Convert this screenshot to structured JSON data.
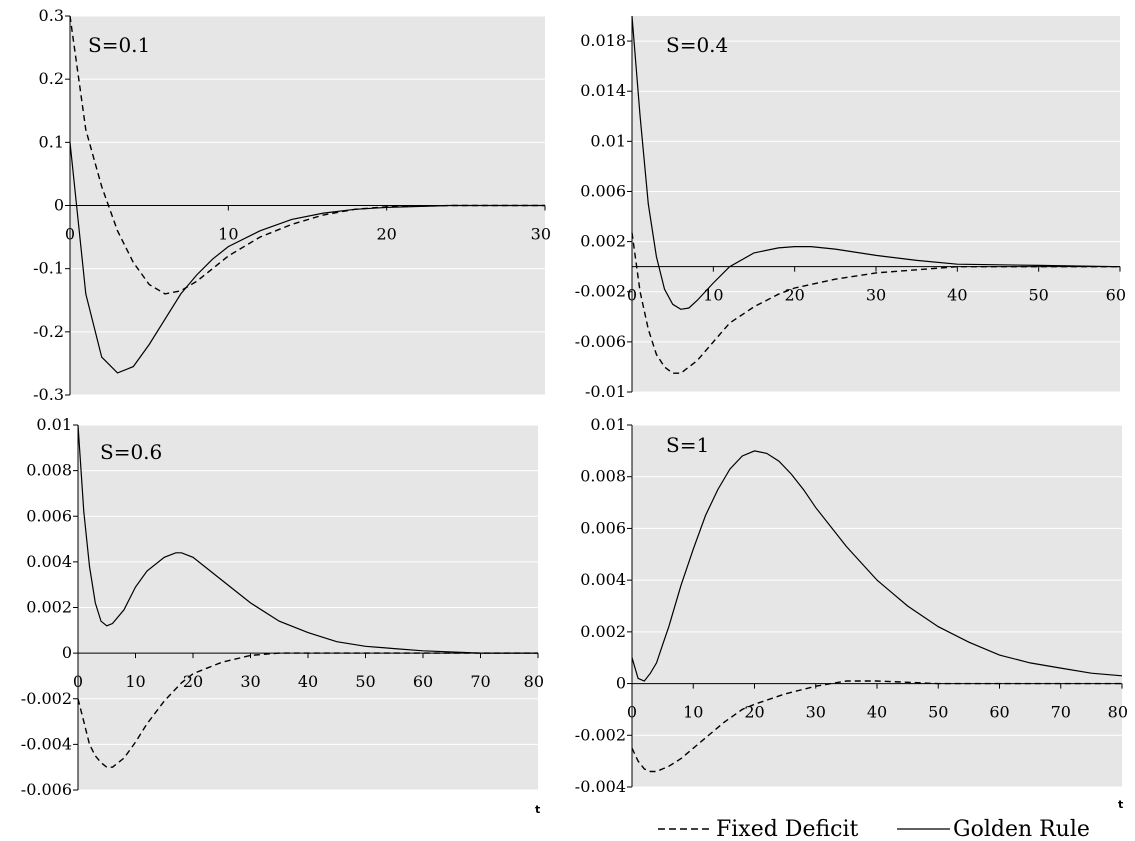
{
  "legend": {
    "fixed_deficit": "Fixed Deficit",
    "golden_rule": "Golden Rule"
  },
  "colors": {
    "plot_background": "#e6e6e6",
    "gridline": "#ffffff",
    "series": "#000000"
  },
  "chart_data": [
    {
      "type": "line",
      "title": "S=0.1",
      "xlabel": "",
      "ylabel": "",
      "xlim": [
        0,
        30
      ],
      "ylim": [
        -0.3,
        0.3
      ],
      "xticks": [
        "0",
        "10",
        "20",
        "30"
      ],
      "yticks": [
        "-0.3",
        "-0.2",
        "-0.1",
        "0",
        "0.1",
        "0.2",
        "0.3"
      ],
      "grid": true,
      "series": [
        {
          "name": "Fixed Deficit",
          "style": "dashed",
          "x": [
            0,
            1,
            2,
            3,
            4,
            5,
            6,
            7,
            8,
            9,
            10,
            12,
            14,
            16,
            18,
            20,
            24,
            30
          ],
          "y": [
            0.3,
            0.12,
            0.03,
            -0.04,
            -0.09,
            -0.125,
            -0.14,
            -0.135,
            -0.12,
            -0.1,
            -0.08,
            -0.05,
            -0.03,
            -0.015,
            -0.006,
            -0.002,
            0,
            0
          ]
        },
        {
          "name": "Golden Rule",
          "style": "solid",
          "x": [
            0,
            1,
            2,
            3,
            4,
            5,
            6,
            7,
            8,
            9,
            10,
            12,
            14,
            16,
            18,
            20,
            24,
            30
          ],
          "y": [
            0.1,
            -0.14,
            -0.24,
            -0.265,
            -0.255,
            -0.22,
            -0.18,
            -0.14,
            -0.11,
            -0.085,
            -0.065,
            -0.04,
            -0.022,
            -0.012,
            -0.006,
            -0.003,
            0,
            0
          ]
        }
      ]
    },
    {
      "type": "line",
      "title": "S=0.4",
      "xlabel": "",
      "ylabel": "",
      "xlim": [
        0,
        60
      ],
      "ylim": [
        -0.01,
        0.02
      ],
      "xticks": [
        "0",
        "10",
        "20",
        "30",
        "40",
        "50",
        "60"
      ],
      "yticks": [
        "-0.01",
        "-0.006",
        "-0.002",
        "0.002",
        "0.006",
        "0.01",
        "0.014",
        "0.018"
      ],
      "grid": true,
      "series": [
        {
          "name": "Fixed Deficit",
          "style": "dashed",
          "x": [
            0,
            1,
            2,
            3,
            4,
            5,
            6,
            8,
            10,
            12,
            15,
            18,
            20,
            25,
            30,
            40,
            50,
            60
          ],
          "y": [
            0.0027,
            -0.002,
            -0.005,
            -0.007,
            -0.008,
            -0.0085,
            -0.0085,
            -0.0075,
            -0.006,
            -0.0045,
            -0.0032,
            -0.0022,
            -0.0017,
            -0.001,
            -0.0005,
            0,
            0,
            0
          ]
        },
        {
          "name": "Golden Rule",
          "style": "solid",
          "x": [
            0,
            1,
            2,
            3,
            4,
            5,
            6,
            7,
            8,
            10,
            12,
            15,
            18,
            20,
            22,
            25,
            30,
            35,
            40,
            50,
            60
          ],
          "y": [
            0.02,
            0.012,
            0.005,
            0.0008,
            -0.0018,
            -0.003,
            -0.0034,
            -0.0033,
            -0.0027,
            -0.0013,
            0,
            0.0011,
            0.0015,
            0.0016,
            0.0016,
            0.0014,
            0.0009,
            0.0005,
            0.0002,
            0.0001,
            0
          ]
        }
      ]
    },
    {
      "type": "line",
      "title": "S=0.6",
      "xlabel": "t",
      "ylabel": "",
      "xlim": [
        0,
        80
      ],
      "ylim": [
        -0.006,
        0.01
      ],
      "xticks": [
        "0",
        "10",
        "20",
        "30",
        "40",
        "50",
        "60",
        "70",
        "80"
      ],
      "yticks": [
        "-0.006",
        "-0.004",
        "-0.002",
        "0",
        "0.002",
        "0.004",
        "0.006",
        "0.008",
        "0.01"
      ],
      "grid": true,
      "series": [
        {
          "name": "Fixed Deficit",
          "style": "dashed",
          "x": [
            0,
            1,
            2,
            3,
            4,
            5,
            6,
            8,
            10,
            12,
            15,
            18,
            20,
            25,
            30,
            35,
            40,
            50,
            60,
            70,
            80
          ],
          "y": [
            -0.002,
            -0.003,
            -0.004,
            -0.0045,
            -0.0048,
            -0.005,
            -0.005,
            -0.0046,
            -0.0039,
            -0.0031,
            -0.0021,
            -0.0013,
            -0.0009,
            -0.0004,
            -0.0001,
            0,
            0,
            0,
            0,
            0,
            0
          ]
        },
        {
          "name": "Golden Rule",
          "style": "solid",
          "x": [
            0,
            1,
            2,
            3,
            4,
            5,
            6,
            8,
            10,
            12,
            15,
            17,
            18,
            20,
            25,
            30,
            35,
            40,
            45,
            50,
            55,
            60,
            70,
            80
          ],
          "y": [
            0.01,
            0.0062,
            0.0038,
            0.0022,
            0.0014,
            0.0012,
            0.0013,
            0.0019,
            0.0029,
            0.0036,
            0.0042,
            0.0044,
            0.0044,
            0.0042,
            0.0032,
            0.0022,
            0.0014,
            0.0009,
            0.0005,
            0.0003,
            0.0002,
            0.0001,
            0,
            0
          ]
        }
      ]
    },
    {
      "type": "line",
      "title": "S=1",
      "xlabel": "t",
      "ylabel": "",
      "xlim": [
        0,
        80
      ],
      "ylim": [
        -0.004,
        0.01
      ],
      "xticks": [
        "0",
        "10",
        "20",
        "30",
        "40",
        "50",
        "60",
        "70",
        "80"
      ],
      "yticks": [
        "-0.004",
        "-0.002",
        "0",
        "0.002",
        "0.004",
        "0.006",
        "0.008",
        "0.01"
      ],
      "grid": true,
      "series": [
        {
          "name": "Fixed Deficit",
          "style": "dashed",
          "x": [
            0,
            1,
            2,
            3,
            4,
            5,
            6,
            8,
            10,
            12,
            15,
            18,
            20,
            25,
            30,
            35,
            40,
            50,
            60,
            70,
            80
          ],
          "y": [
            -0.0025,
            -0.003,
            -0.0033,
            -0.0034,
            -0.0034,
            -0.0033,
            -0.0032,
            -0.0029,
            -0.0025,
            -0.0021,
            -0.0015,
            -0.001,
            -0.0008,
            -0.0004,
            -0.0001,
            0.0001,
            0.0001,
            0,
            0,
            0,
            0
          ]
        },
        {
          "name": "Golden Rule",
          "style": "solid",
          "x": [
            0,
            1,
            2,
            3,
            4,
            5,
            6,
            8,
            10,
            12,
            14,
            16,
            18,
            20,
            22,
            24,
            26,
            28,
            30,
            35,
            40,
            45,
            50,
            55,
            60,
            65,
            70,
            75,
            80
          ],
          "y": [
            0.001,
            0.0002,
            0.0001,
            0.0004,
            0.0008,
            0.0015,
            0.0022,
            0.0038,
            0.0052,
            0.0065,
            0.0075,
            0.0083,
            0.0088,
            0.009,
            0.0089,
            0.0086,
            0.0081,
            0.0075,
            0.0068,
            0.0053,
            0.004,
            0.003,
            0.0022,
            0.0016,
            0.0011,
            0.0008,
            0.0006,
            0.0004,
            0.0003
          ]
        }
      ]
    }
  ]
}
